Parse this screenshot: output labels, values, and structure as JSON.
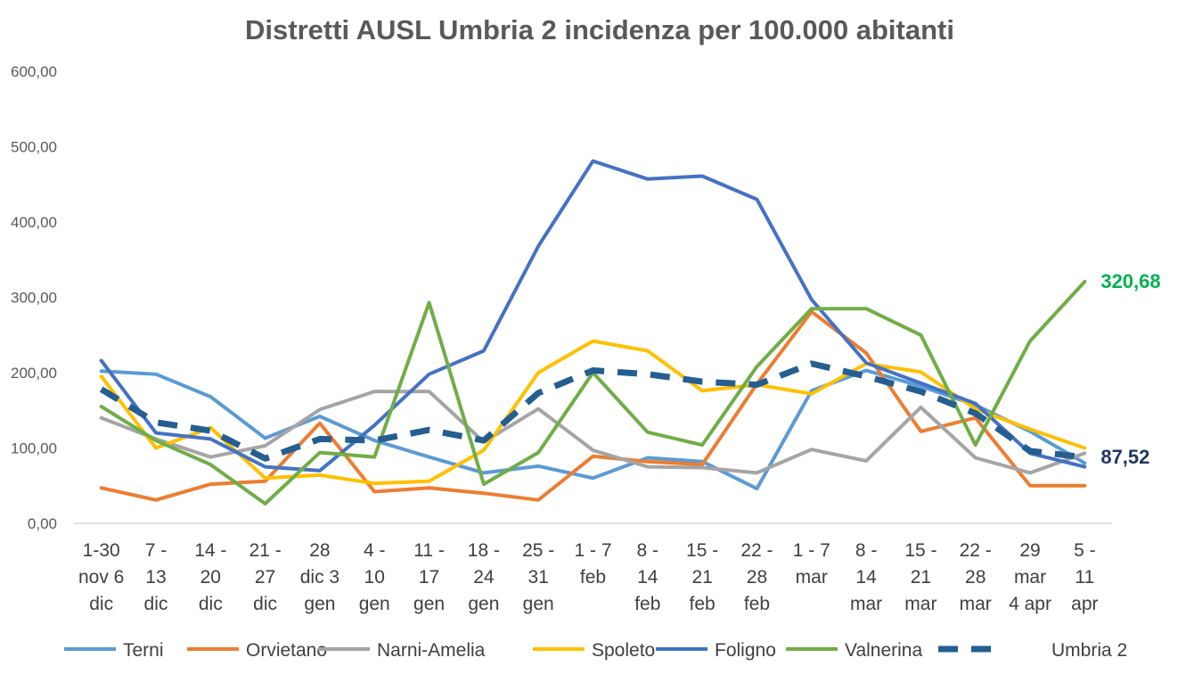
{
  "chart_data": {
    "type": "line",
    "title": "Distretti AUSL Umbria 2 incidenza per 100.000 abitanti",
    "xlabel": "",
    "ylabel": "",
    "ylim": [
      0,
      600
    ],
    "yticks": [
      "0,00",
      "100,00",
      "200,00",
      "300,00",
      "400,00",
      "500,00",
      "600,00"
    ],
    "categories": [
      [
        "1-30",
        "nov 6",
        "dic"
      ],
      [
        "7 -",
        "13",
        "dic"
      ],
      [
        "14 -",
        "20",
        "dic"
      ],
      [
        "21 -",
        "27",
        "dic"
      ],
      [
        "28",
        "dic 3",
        "gen"
      ],
      [
        "4 -",
        "10",
        "gen"
      ],
      [
        "11 -",
        "17",
        "gen"
      ],
      [
        "18 -",
        "24",
        "gen"
      ],
      [
        "25 -",
        "31",
        "gen"
      ],
      [
        "1 - 7",
        "feb"
      ],
      [
        "8 -",
        "14",
        "feb"
      ],
      [
        "15 -",
        "21",
        "feb"
      ],
      [
        "22 -",
        "28",
        "feb"
      ],
      [
        "1 - 7",
        "mar"
      ],
      [
        "8 -",
        "14",
        "mar"
      ],
      [
        "15 -",
        "21",
        "mar"
      ],
      [
        "22 -",
        "28",
        "mar"
      ],
      [
        "29",
        "mar",
        "4 apr"
      ],
      [
        "5 -",
        "11",
        "apr"
      ]
    ],
    "grid": false,
    "legend_position": "bottom",
    "series": [
      {
        "name": "Terni",
        "color": "#5B9BD5",
        "dashed": false,
        "values": [
          202,
          198,
          168,
          113,
          142,
          110,
          88,
          67,
          76,
          60,
          87,
          82,
          46,
          176,
          203,
          182,
          157,
          122,
          80
        ]
      },
      {
        "name": "Orvietano",
        "color": "#ED7D31",
        "dashed": false,
        "values": [
          47,
          31,
          52,
          56,
          133,
          42,
          47,
          40,
          31,
          89,
          82,
          78,
          185,
          281,
          226,
          122,
          140,
          50,
          50
        ]
      },
      {
        "name": "Narni-Amelia",
        "color": "#A5A5A5",
        "dashed": false,
        "values": [
          140,
          112,
          88,
          103,
          151,
          175,
          175,
          108,
          152,
          97,
          75,
          74,
          67,
          98,
          83,
          154,
          87,
          67,
          93
        ]
      },
      {
        "name": "Spoleto",
        "color": "#FFC000",
        "dashed": false,
        "values": [
          195,
          100,
          127,
          60,
          64,
          53,
          56,
          97,
          200,
          242,
          229,
          176,
          184,
          172,
          212,
          201,
          152,
          125,
          100
        ]
      },
      {
        "name": "Foligno",
        "color": "#4472C4",
        "dashed": false,
        "values": [
          216,
          120,
          112,
          75,
          70,
          130,
          198,
          229,
          368,
          481,
          457,
          461,
          430,
          297,
          213,
          186,
          159,
          93,
          75
        ]
      },
      {
        "name": "Valnerina",
        "color": "#70AD47",
        "dashed": false,
        "values": [
          155,
          110,
          78,
          26,
          94,
          88,
          293,
          52,
          94,
          200,
          121,
          104,
          208,
          285,
          285,
          250,
          104,
          242,
          320.68
        ]
      },
      {
        "name": "Umbria 2",
        "color": "#255E91",
        "dashed": true,
        "values": [
          178,
          134,
          123,
          86,
          112,
          110,
          124,
          110,
          173,
          203,
          198,
          188,
          184,
          212,
          195,
          175,
          146,
          96,
          87.52
        ]
      }
    ],
    "data_labels": [
      {
        "series": "Valnerina",
        "text": "320,68",
        "color": "#00B050"
      },
      {
        "series": "Umbria 2",
        "text": "87,52",
        "color": "#1F3864"
      }
    ]
  }
}
